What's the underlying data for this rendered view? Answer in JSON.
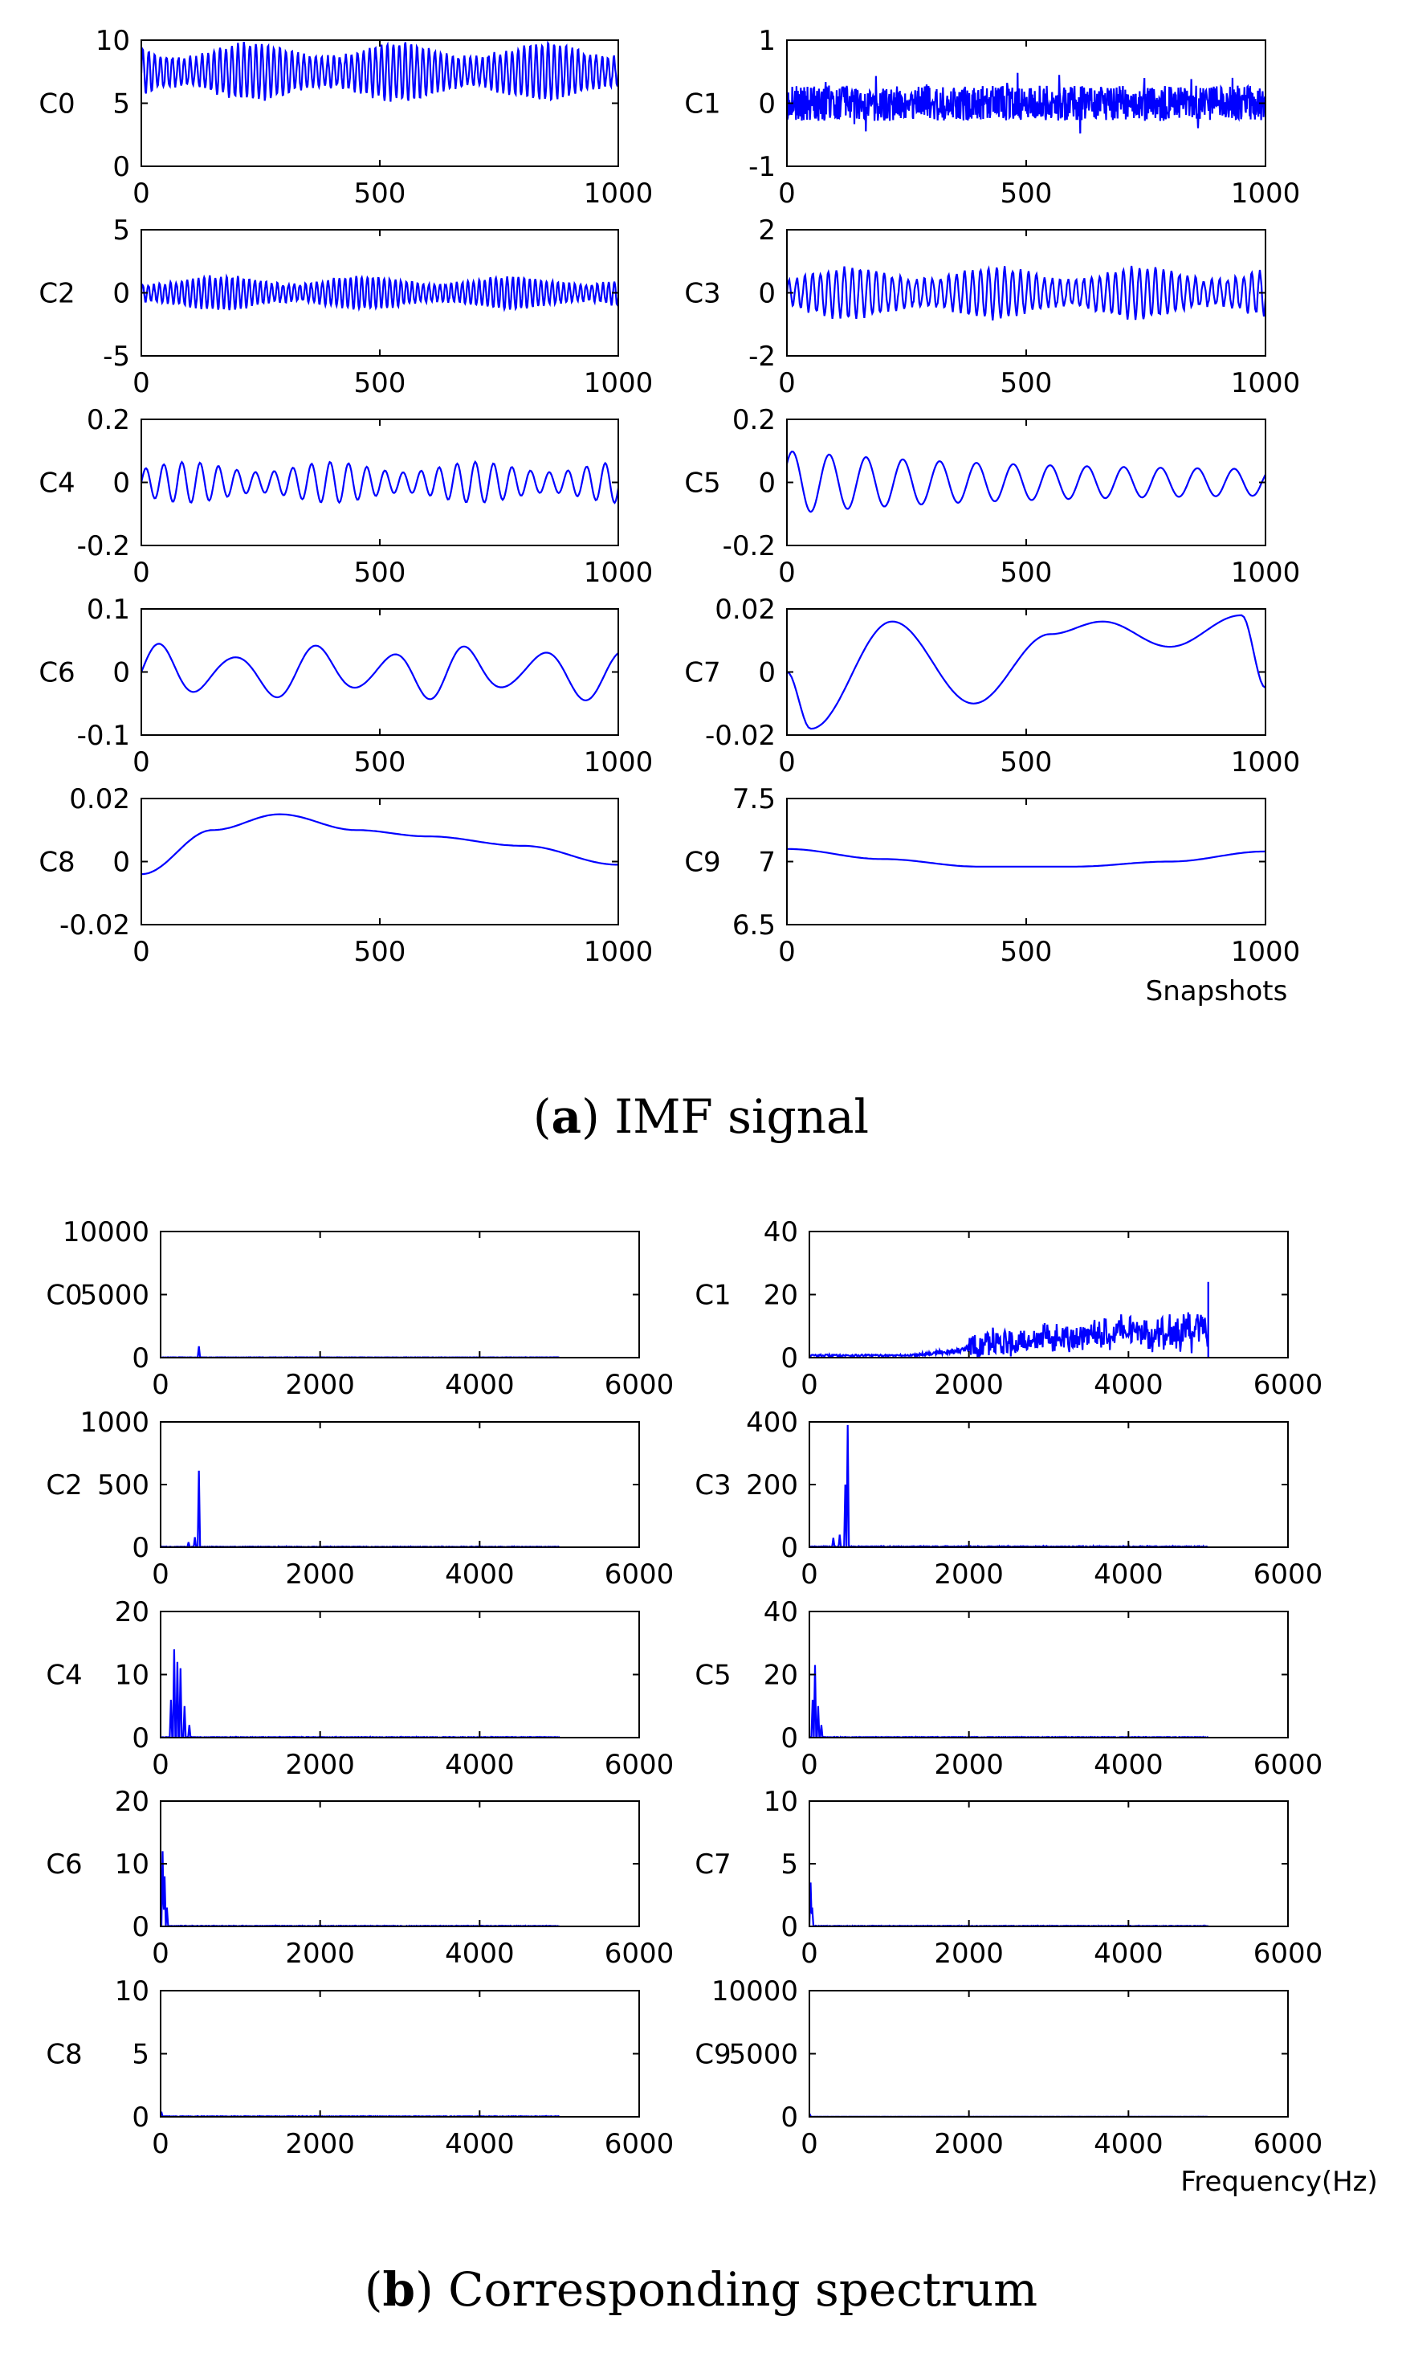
{
  "captions": {
    "a": {
      "letter": "a",
      "text": "IMF signal"
    },
    "b": {
      "letter": "b",
      "text": "Corresponding spectrum"
    }
  },
  "colors": {
    "series": "#0000ff",
    "axes": "#000000"
  },
  "chart_data": [
    {
      "group": "a",
      "type": "line",
      "title": "",
      "xlabel": "Snapshots",
      "xlim": [
        0,
        1000
      ],
      "xticks": [
        "0",
        "500",
        "1000"
      ],
      "panels": [
        {
          "ylabel": "C0",
          "ylim": [
            0,
            10
          ],
          "yticks": [
            "0",
            "5",
            "10"
          ],
          "signal": {
            "kind": "osc",
            "offset": 7.5,
            "amp": 2.2,
            "cycles": 80,
            "noise": 0.2
          }
        },
        {
          "ylabel": "C1",
          "ylim": [
            -1,
            1
          ],
          "yticks": [
            "-1",
            "0",
            "1"
          ],
          "signal": {
            "kind": "noise",
            "offset": 0,
            "amp": 0.28,
            "cycles": 0,
            "noise": 0.28
          }
        },
        {
          "ylabel": "C2",
          "ylim": [
            -5,
            5
          ],
          "yticks": [
            "-5",
            "0",
            "5"
          ],
          "signal": {
            "kind": "osc",
            "offset": 0,
            "amp": 1.3,
            "cycles": 85,
            "noise": 0.2
          }
        },
        {
          "ylabel": "C3",
          "ylim": [
            -2,
            2
          ],
          "yticks": [
            "-2",
            "0",
            "2"
          ],
          "signal": {
            "kind": "osc",
            "offset": 0,
            "amp": 0.8,
            "cycles": 60,
            "noise": 0.2
          }
        },
        {
          "ylabel": "C4",
          "ylim": [
            -0.2,
            0.2
          ],
          "yticks": [
            "-0.2",
            "0",
            "0.2"
          ],
          "signal": {
            "kind": "osc",
            "offset": 0,
            "amp": 0.065,
            "cycles": 26,
            "noise": 0.012
          }
        },
        {
          "ylabel": "C5",
          "ylim": [
            -0.2,
            0.2
          ],
          "yticks": [
            "-0.2",
            "0",
            "0.2"
          ],
          "signal": {
            "kind": "decay",
            "offset": 0,
            "amp": 0.1,
            "cycles": 13,
            "noise": 0
          }
        },
        {
          "ylabel": "C6",
          "ylim": [
            -0.1,
            0.1
          ],
          "yticks": [
            "-0.1",
            "0",
            "0.1"
          ],
          "signal": {
            "kind": "osc",
            "offset": 0,
            "amp": 0.045,
            "cycles": 6.2,
            "noise": 0
          }
        },
        {
          "ylabel": "C7",
          "ylim": [
            -0.02,
            0.02
          ],
          "yticks": [
            "-0.02",
            "0",
            "0.02"
          ],
          "signal": {
            "kind": "points",
            "xs": [
              0,
              50,
              220,
              390,
              550,
              660,
              800,
              950,
              1000
            ],
            "ys": [
              0,
              -0.018,
              0.016,
              -0.01,
              0.012,
              0.016,
              0.008,
              0.018,
              -0.005
            ]
          }
        },
        {
          "ylabel": "C8",
          "ylim": [
            -0.02,
            0.02
          ],
          "yticks": [
            "-0.02",
            "0",
            "0.02"
          ],
          "signal": {
            "kind": "points",
            "xs": [
              0,
              150,
              290,
              450,
              600,
              800,
              1000
            ],
            "ys": [
              -0.004,
              0.01,
              0.015,
              0.01,
              0.008,
              0.005,
              -0.001
            ]
          }
        },
        {
          "ylabel": "C9",
          "ylim": [
            6.5,
            7.5
          ],
          "yticks": [
            "6.5",
            "7",
            "7.5"
          ],
          "signal": {
            "kind": "points",
            "xs": [
              0,
              200,
              400,
              600,
              800,
              1000
            ],
            "ys": [
              7.1,
              7.02,
              6.96,
              6.96,
              7.0,
              7.08
            ]
          }
        }
      ]
    },
    {
      "group": "b",
      "type": "line",
      "title": "",
      "xlabel": "Frequency(Hz)",
      "xlim": [
        0,
        6000
      ],
      "xticks": [
        "0",
        "2000",
        "4000",
        "6000"
      ],
      "panels": [
        {
          "ylabel": "C0",
          "ylim": [
            0,
            10000
          ],
          "yticks": [
            "0",
            "5000",
            "10000"
          ],
          "signal": {
            "kind": "peaks",
            "peaks": [
              [
                480,
                900
              ]
            ],
            "base": 30,
            "bandLo": 0,
            "bandHi": 5000
          }
        },
        {
          "ylabel": "C1",
          "ylim": [
            0,
            40
          ],
          "yticks": [
            "0",
            "20",
            "40"
          ],
          "signal": {
            "kind": "band",
            "rampStart": 0,
            "rampEnd": 5000,
            "startLevel": 1,
            "endLevel": 10,
            "jitter": 8,
            "maxVal": 24,
            "cutoff": 5000
          }
        },
        {
          "ylabel": "C2",
          "ylim": [
            0,
            1000
          ],
          "yticks": [
            "0",
            "500",
            "1000"
          ],
          "signal": {
            "kind": "peaks",
            "peaks": [
              [
                480,
                610
              ],
              [
                430,
                80
              ],
              [
                350,
                40
              ]
            ],
            "base": 5,
            "bandLo": 0,
            "bandHi": 5000
          }
        },
        {
          "ylabel": "C3",
          "ylim": [
            0,
            400
          ],
          "yticks": [
            "0",
            "200",
            "400"
          ],
          "signal": {
            "kind": "peaks",
            "peaks": [
              [
                480,
                390
              ],
              [
                450,
                200
              ],
              [
                380,
                40
              ],
              [
                300,
                30
              ]
            ],
            "base": 3,
            "bandLo": 0,
            "bandHi": 5000
          }
        },
        {
          "ylabel": "C4",
          "ylim": [
            0,
            20
          ],
          "yticks": [
            "0",
            "10",
            "20"
          ],
          "signal": {
            "kind": "peaks",
            "peaks": [
              [
                170,
                14
              ],
              [
                210,
                12
              ],
              [
                250,
                11
              ],
              [
                130,
                6
              ],
              [
                300,
                5
              ],
              [
                360,
                2
              ]
            ],
            "base": 0.1,
            "bandLo": 0,
            "bandHi": 5000
          }
        },
        {
          "ylabel": "C5",
          "ylim": [
            0,
            40
          ],
          "yticks": [
            "0",
            "20",
            "40"
          ],
          "signal": {
            "kind": "peaks",
            "peaks": [
              [
                70,
                23
              ],
              [
                40,
                12
              ],
              [
                110,
                10
              ],
              [
                150,
                4
              ]
            ],
            "base": 0.2,
            "bandLo": 0,
            "bandHi": 5000
          }
        },
        {
          "ylabel": "C6",
          "ylim": [
            0,
            20
          ],
          "yticks": [
            "0",
            "10",
            "20"
          ],
          "signal": {
            "kind": "peaks",
            "peaks": [
              [
                25,
                12
              ],
              [
                50,
                8
              ],
              [
                80,
                3
              ]
            ],
            "base": 0.1,
            "bandLo": 0,
            "bandHi": 5000
          }
        },
        {
          "ylabel": "C7",
          "ylim": [
            0,
            10
          ],
          "yticks": [
            "0",
            "5",
            "10"
          ],
          "signal": {
            "kind": "peaks",
            "peaks": [
              [
                15,
                3.5
              ],
              [
                35,
                1.5
              ]
            ],
            "base": 0.05,
            "bandLo": 0,
            "bandHi": 5000
          }
        },
        {
          "ylabel": "C8",
          "ylim": [
            0,
            10
          ],
          "yticks": [
            "0",
            "5",
            "10"
          ],
          "signal": {
            "kind": "peaks",
            "peaks": [
              [
                10,
                0.4
              ]
            ],
            "base": 0.05,
            "bandLo": 0,
            "bandHi": 5000
          }
        },
        {
          "ylabel": "C9",
          "ylim": [
            0,
            10000
          ],
          "yticks": [
            "0",
            "5000",
            "10000"
          ],
          "signal": {
            "kind": "peaks",
            "peaks": [
              [
                5,
                200
              ]
            ],
            "base": 10,
            "bandLo": 0,
            "bandHi": 5000
          }
        }
      ]
    }
  ]
}
